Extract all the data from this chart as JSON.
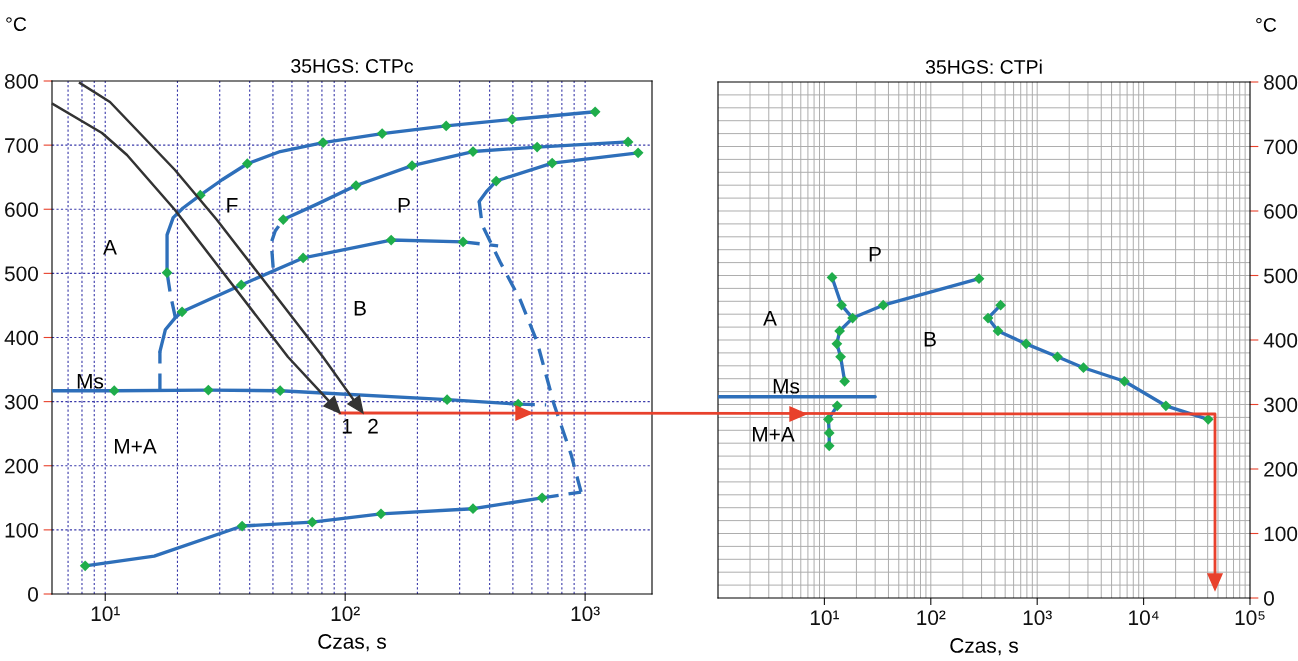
{
  "chart_data": [
    {
      "type": "line",
      "title": "35HGS: CTPc",
      "xlabel": "Czas, s",
      "ylabel": "°C",
      "log": "x",
      "grid": true,
      "xlim": [
        6.0,
        1900
      ],
      "xticks": [
        {
          "value": 10,
          "label": "10¹"
        },
        {
          "value": 100,
          "label": "10²"
        },
        {
          "value": 1000,
          "label": "10³"
        }
      ],
      "ylim": [
        0,
        800
      ],
      "yticks": [
        0,
        100,
        200,
        300,
        400,
        500,
        600,
        700,
        800
      ],
      "series": [
        {
          "color": "#2e6fba",
          "x": [
            18.1,
            18.1,
            19.2,
            21.1,
            24.9,
            30.7,
            39.1,
            53.6,
            80.9,
            142.6,
            263.6,
            496.6,
            1101
          ],
          "values": [
            501,
            560,
            587,
            602,
            622,
            646,
            671,
            690,
            704,
            718,
            730,
            740,
            752
          ]
        },
        {
          "color": "#2e6fba",
          "line_style": "dashed",
          "x": [
            19.6,
            18.7,
            18.1
          ],
          "values": [
            431,
            467,
            501
          ]
        },
        {
          "color": "#2e6fba",
          "line_style": "dashed",
          "x": [
            16.9,
            16.9
          ],
          "values": [
            318,
            378
          ]
        },
        {
          "color": "#2e6fba",
          "x": [
            16.9,
            17.8,
            19.6,
            20.9,
            36.9,
            66.8,
            155.5,
            310
          ],
          "values": [
            378,
            412,
            431,
            440,
            482,
            524,
            552,
            549
          ]
        },
        {
          "color": "#2e6fba",
          "line_style": "dashed",
          "x": [
            310,
            434
          ],
          "values": [
            549,
            543
          ]
        },
        {
          "color": "#2e6fba",
          "line_style": "dashed",
          "x": [
            50.1,
            49.2,
            51.1,
            55.2
          ],
          "values": [
            509,
            548,
            566,
            584
          ]
        },
        {
          "color": "#2e6fba",
          "x": [
            55.2,
            76.4,
            111,
            190,
            341,
            631,
            1510
          ],
          "values": [
            584,
            608,
            637,
            668,
            690,
            697,
            705
          ]
        },
        {
          "color": "#2e6fba",
          "x": [
            362,
            387,
            426,
            729,
            1663
          ],
          "values": [
            612,
            627,
            644,
            672,
            688
          ]
        },
        {
          "color": "#2e6fba",
          "line_style": "dashed",
          "x": [
            362,
            372,
            442,
            536,
            631,
            743,
            875,
            962
          ],
          "values": [
            612,
            576,
            518,
            459,
            393,
            295,
            217,
            159
          ]
        },
        {
          "color": "#2e6fba",
          "x": [
            8.25,
            16,
            37.2,
            72.9,
            141,
            341,
            662
          ],
          "values": [
            44,
            59,
            106,
            112,
            125,
            133,
            150
          ]
        },
        {
          "color": "#2e6fba",
          "line_style": "dashed",
          "x": [
            662,
            962
          ],
          "values": [
            150,
            159
          ]
        },
        {
          "color": "#2e6fba",
          "x": [
            6.0,
            10.9,
            26.9,
            53.6,
            266,
            526
          ],
          "values": [
            317,
            317,
            318,
            317,
            303,
            296
          ]
        },
        {
          "color": "#2e6fba",
          "line_style": "dashed",
          "x": [
            526,
            688
          ],
          "values": [
            296,
            295
          ]
        },
        {
          "type": "scatter",
          "color": "#1fad4b",
          "marker": "diamond",
          "x": [
            18.1,
            24.9,
            39.1,
            80.9,
            142.6,
            263.6,
            496.6,
            1101,
            20.9,
            36.9,
            66.8,
            155.5,
            310,
            55.2,
            111,
            190,
            341,
            631,
            1510,
            426,
            729,
            1663,
            8.25,
            37.2,
            72.9,
            141,
            341,
            662,
            10.9,
            26.9,
            53.6,
            266,
            526
          ],
          "values": [
            501,
            622,
            671,
            704,
            718,
            730,
            740,
            752,
            440,
            482,
            524,
            552,
            549,
            584,
            637,
            668,
            690,
            697,
            705,
            644,
            672,
            688,
            44,
            106,
            112,
            125,
            133,
            150,
            317,
            318,
            317,
            303,
            296
          ]
        }
      ],
      "annotations": [
        "A",
        "F",
        "P",
        "B",
        "Ms",
        "M+A",
        "1",
        "2"
      ]
    },
    {
      "type": "line",
      "title": "35HGS: CTPi",
      "xlabel": "Czas, s",
      "y2label": "°C",
      "log": "x",
      "grid": true,
      "xlim": [
        1,
        100000
      ],
      "xticks": [
        {
          "value": 10,
          "label": "10¹"
        },
        {
          "value": 100,
          "label": "10²"
        },
        {
          "value": 1000,
          "label": "10³"
        },
        {
          "value": 10000,
          "label": "10⁴"
        },
        {
          "value": 100000,
          "label": "10⁵"
        }
      ],
      "y2lim": [
        0,
        800
      ],
      "y2ticks": [
        0,
        100,
        200,
        300,
        400,
        500,
        600,
        700,
        800
      ],
      "series": [
        {
          "axis": "y2",
          "color": "#2e6fba",
          "x": [
            11.8,
            14.5,
            18.4,
            13.9,
            13.1,
            14.2,
            15.5
          ],
          "values": [
            497,
            454,
            434,
            414,
            394,
            374,
            336
          ]
        },
        {
          "axis": "y2",
          "color": "#2e6fba",
          "x": [
            18.4,
            35.7,
            284
          ],
          "values": [
            434,
            454,
            495
          ]
        },
        {
          "axis": "y2",
          "color": "#2e6fba",
          "x": [
            13.2,
            10.9,
            11.1,
            11.1
          ],
          "values": [
            298,
            277,
            256,
            236
          ]
        },
        {
          "axis": "y2",
          "color": "#2e6fba",
          "x": [
            453,
            345,
            428,
            787,
            1550,
            2720,
            6600,
            16200,
            40500
          ],
          "values": [
            454,
            434,
            414,
            394,
            374,
            357,
            336,
            298,
            277
          ]
        },
        {
          "axis": "y2",
          "color": "#2e6fba",
          "x": [
            1,
            30
          ],
          "values": [
            312,
            312
          ]
        },
        {
          "type": "scatter",
          "axis": "y2",
          "color": "#1fad4b",
          "marker": "diamond",
          "x": [
            11.8,
            14.5,
            18.4,
            13.9,
            13.1,
            14.2,
            15.5,
            35.7,
            284,
            13.2,
            10.9,
            11.1,
            11.1,
            453,
            345,
            428,
            787,
            1550,
            2720,
            6600,
            16200,
            40500
          ],
          "values": [
            497,
            454,
            434,
            414,
            394,
            374,
            336,
            454,
            495,
            298,
            277,
            256,
            236,
            454,
            434,
            414,
            394,
            374,
            357,
            336,
            298,
            277
          ]
        }
      ],
      "annotations": [
        "A",
        "P",
        "B",
        "Ms",
        "M+A"
      ]
    }
  ]
}
